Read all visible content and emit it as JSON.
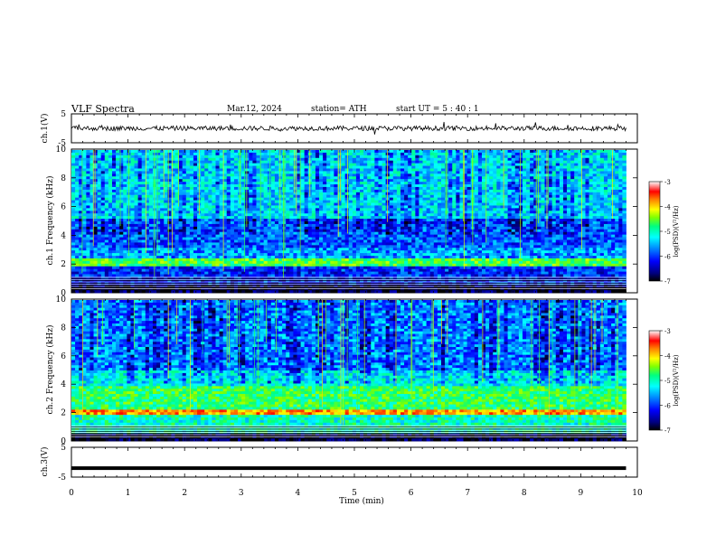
{
  "header": {
    "title": "VLF  Spectra",
    "date": "Mar.12, 2024",
    "station": "station= ATH",
    "start": "start  UT  =    5  : 40 : 1"
  },
  "chart_data": [
    {
      "type": "line",
      "panel": "ch1-waveform",
      "ylabel": "ch.1(V)",
      "ylim": [
        -5,
        5
      ],
      "y_ticks": [
        "5",
        "-5"
      ],
      "x": [
        0,
        10
      ],
      "series": [
        {
          "values": [
            0,
            0
          ]
        }
      ]
    },
    {
      "type": "heatmap",
      "panel": "ch1-spectrogram",
      "ylabel": "ch.1  Frequency  (kHz)",
      "ylim": [
        0,
        10
      ],
      "y_ticks": [
        "0",
        "2",
        "4",
        "6",
        "8",
        "10"
      ],
      "xlim": [
        0,
        10
      ],
      "data_end_min": 9.8,
      "colorbar": {
        "label": "log(PSD)(V²/Hz)",
        "range": [
          -7,
          -3
        ],
        "ticks": [
          "-3",
          "-4",
          "-5",
          "-6",
          "-7"
        ]
      },
      "colormap": [
        "#000000",
        "#000080",
        "#0000ff",
        "#0080ff",
        "#00ffff",
        "#00ff80",
        "#80ff00",
        "#ffff00",
        "#ff8000",
        "#ff0000",
        "#ffffff"
      ]
    },
    {
      "type": "heatmap",
      "panel": "ch2-spectrogram",
      "ylabel": "ch.2  Frequency  (kHz)",
      "ylim": [
        0,
        10
      ],
      "y_ticks": [
        "0",
        "2",
        "4",
        "6",
        "8",
        "10"
      ],
      "xlim": [
        0,
        10
      ],
      "data_end_min": 9.8,
      "colorbar": {
        "label": "log(PSD)(V²/Hz)",
        "range": [
          -7,
          -3
        ],
        "ticks": [
          "-3",
          "-4",
          "-5",
          "-6",
          "-7"
        ]
      },
      "colormap": [
        "#000000",
        "#000080",
        "#0000ff",
        "#0080ff",
        "#00ffff",
        "#00ff80",
        "#80ff00",
        "#ffff00",
        "#ff8000",
        "#ff0000",
        "#ffffff"
      ]
    },
    {
      "type": "line",
      "panel": "ch3-waveform",
      "ylabel": "ch.3(V)",
      "ylim": [
        -5,
        5
      ],
      "y_ticks": [
        "5",
        "-5"
      ],
      "x": [
        0,
        9.8
      ],
      "series": [
        {
          "values": [
            -2,
            -2
          ]
        }
      ]
    }
  ],
  "x_axis": {
    "label": "Time  (min)",
    "ticks": [
      "0",
      "1",
      "2",
      "3",
      "4",
      "5",
      "6",
      "7",
      "8",
      "9",
      "10"
    ],
    "xlim": [
      0,
      10
    ]
  }
}
